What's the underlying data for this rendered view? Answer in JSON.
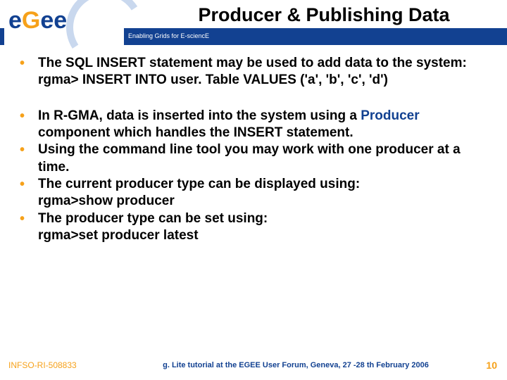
{
  "header": {
    "title": "Producer & Publishing Data",
    "subtitle": "Enabling Grids for E-sciencE",
    "logo_text_part1": "e",
    "logo_text_part2": "G",
    "logo_text_part3": "ee"
  },
  "colors": {
    "brand_blue": "#124191",
    "accent_orange": "#f6a11a",
    "arc_light": "#c9d8ee",
    "text": "#000000",
    "bg": "#ffffff"
  },
  "content": {
    "group1": [
      {
        "lines": [
          "The SQL INSERT statement may be used to add data to the system:",
          "rgma> INSERT INTO user. Table VALUES ('a', 'b', 'c', 'd')"
        ]
      }
    ],
    "group2": [
      {
        "lines": [
          "In R-GMA, data is inserted into the system using a <hl>Producer</hl> component which handles the INSERT statement."
        ]
      },
      {
        "lines": [
          "Using the command line tool you may work with one producer at a time."
        ]
      },
      {
        "lines": [
          "The current producer type can be displayed using:",
          "rgma>show producer"
        ]
      },
      {
        "lines": [
          "The producer type can be set using:",
          "rgma>set producer latest"
        ]
      }
    ]
  },
  "footer": {
    "left": "INFSO-RI-508833",
    "center": "g. Lite tutorial at the EGEE User Forum, Geneva, 27 -28 th February 2006",
    "page": "10"
  }
}
